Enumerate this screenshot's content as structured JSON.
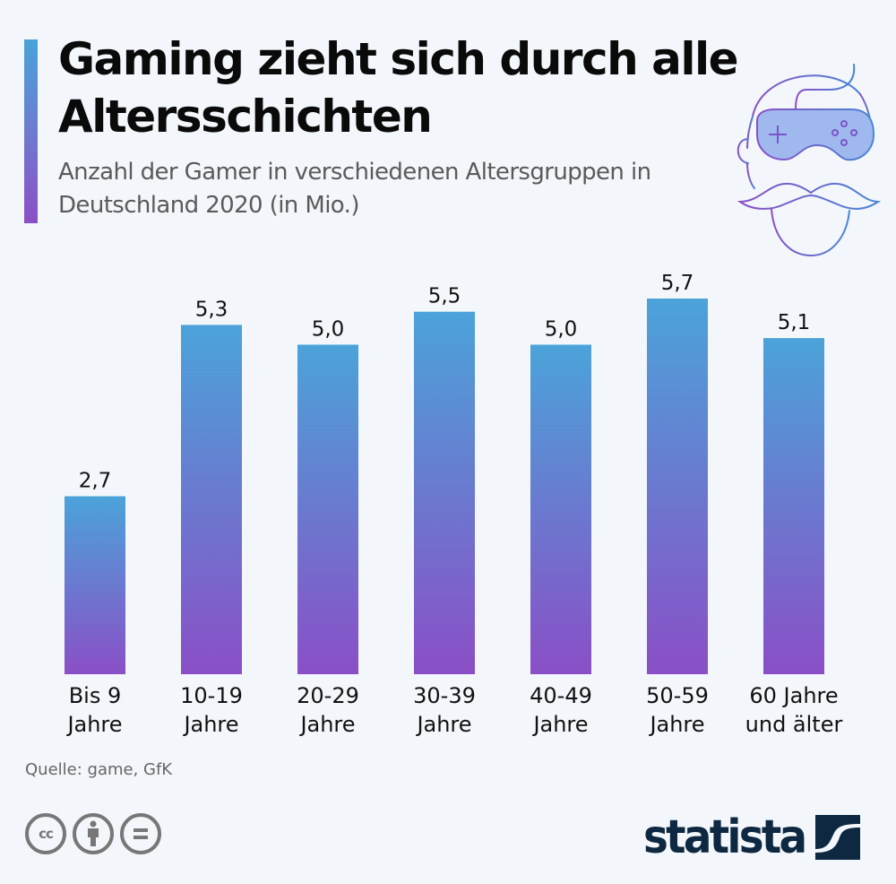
{
  "header": {
    "title": "Gaming zieht sich durch alle Altersschichten",
    "subtitle": "Anzahl der Gamer in verschiedenen Altersgruppen in Deutschland 2020 (in Mio.)"
  },
  "illustration": {
    "icon": "gamer-face-with-vr-controller-icon"
  },
  "chart_data": {
    "type": "bar",
    "title": "Gaming zieht sich durch alle Altersschichten",
    "subtitle": "Anzahl der Gamer in verschiedenen Altersgruppen in Deutschland 2020 (in Mio.)",
    "categories": [
      [
        "Bis 9",
        "Jahre"
      ],
      [
        "10-19",
        "Jahre"
      ],
      [
        "20-29",
        "Jahre"
      ],
      [
        "30-39",
        "Jahre"
      ],
      [
        "40-49",
        "Jahre"
      ],
      [
        "50-59",
        "Jahre"
      ],
      [
        "60 Jahre",
        "und älter"
      ]
    ],
    "values": [
      2.7,
      5.3,
      5.0,
      5.5,
      5.0,
      5.7,
      5.1
    ],
    "value_labels": [
      "2,7",
      "5,3",
      "5,0",
      "5,5",
      "5,0",
      "5,7",
      "5,1"
    ],
    "xlabel": "",
    "ylabel": "",
    "ylim": [
      0,
      5.7
    ],
    "grid": false,
    "legend": "none",
    "bar_gradient": {
      "top": "#4ba3d9",
      "bottom": "#8a4fc6"
    }
  },
  "footer": {
    "source": "Quelle: game, GfK",
    "license_icons": [
      "cc-icon",
      "attribution-icon",
      "no-derivatives-icon"
    ],
    "cc_text": "cc",
    "brand": "statista",
    "brand_color": "#0e2841"
  }
}
